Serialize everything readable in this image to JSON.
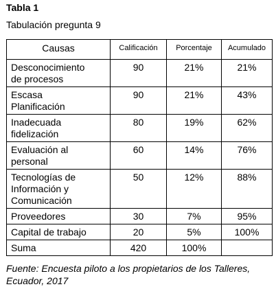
{
  "header": {
    "title": "Tabla 1",
    "subtitle": "Tabulación pregunta 9"
  },
  "table": {
    "columns": [
      "Causas",
      "Calificación",
      "Porcentaje",
      "Acumulado"
    ],
    "rows": [
      [
        [
          "Desconocimiento",
          "de procesos"
        ],
        "90",
        "21%",
        "21%"
      ],
      [
        [
          "Escasa",
          "Planificación"
        ],
        "90",
        "21%",
        "43%"
      ],
      [
        [
          "Inadecuada",
          "fidelización"
        ],
        "80",
        "19%",
        "62%"
      ],
      [
        [
          "Evaluación al",
          "personal"
        ],
        "60",
        "14%",
        "76%"
      ],
      [
        [
          "Tecnologías de",
          "Información y",
          "Comunicación"
        ],
        "50",
        "12%",
        "88%"
      ],
      [
        [
          "Proveedores"
        ],
        "30",
        "7%",
        "95%"
      ],
      [
        [
          "Capital de trabajo"
        ],
        "20",
        "5%",
        "100%"
      ],
      [
        [
          "Suma"
        ],
        "420",
        "100%"
      ]
    ]
  },
  "source": "Fuente: Encuesta piloto a los propietarios de los Talleres, Ecuador, 2017"
}
